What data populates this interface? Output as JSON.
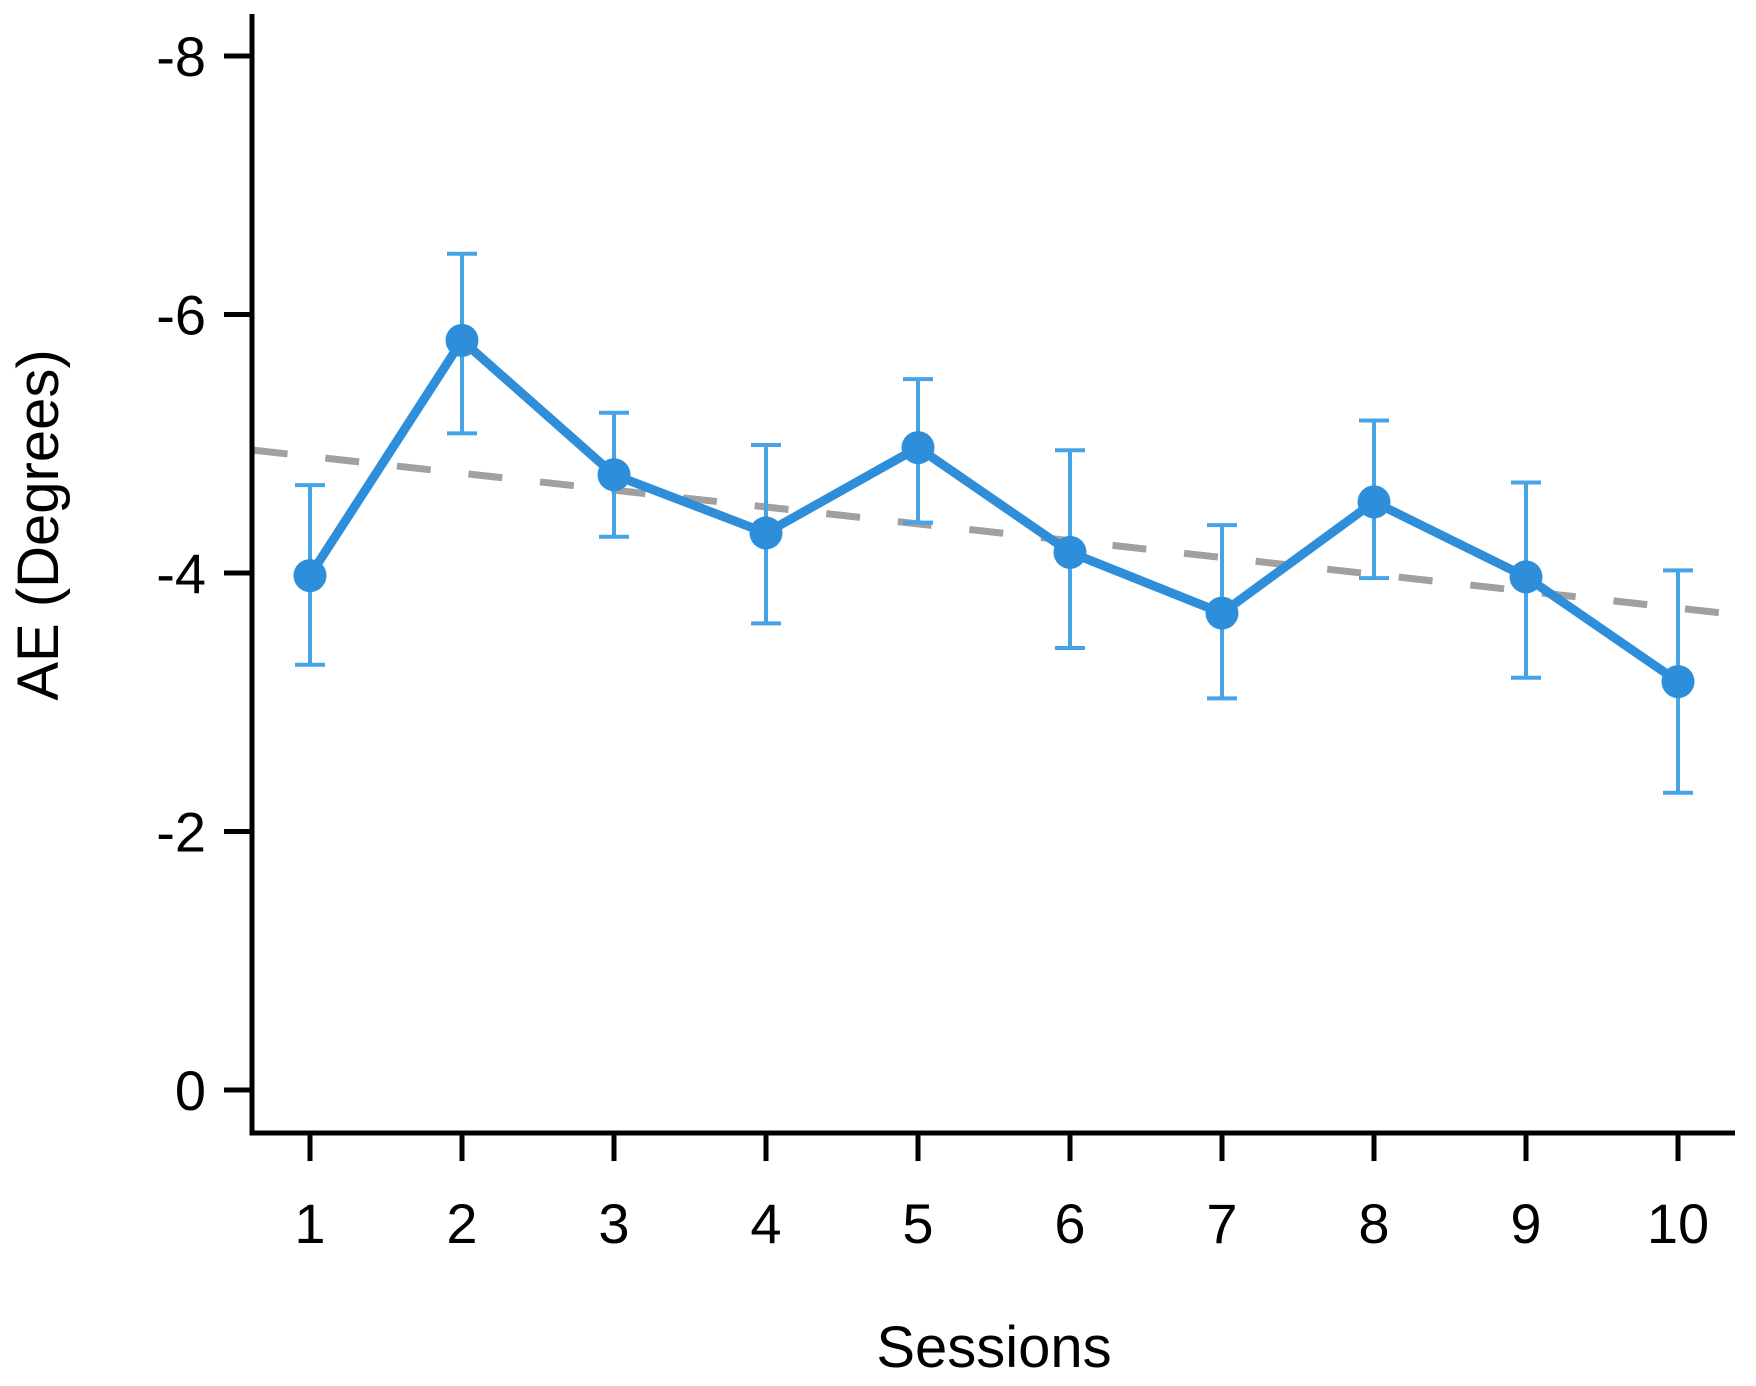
{
  "page": {
    "background": "#ffffff"
  },
  "chart_data": {
    "type": "line",
    "title": "",
    "xlabel": "Sessions",
    "ylabel": "AE (Degrees)",
    "grid": false,
    "legend": "none",
    "x_axis": {
      "label": "Sessions",
      "ticks": [
        1,
        2,
        3,
        4,
        5,
        6,
        7,
        8,
        9,
        10
      ],
      "tick_labels": [
        "1",
        "2",
        "3",
        "4",
        "5",
        "6",
        "7",
        "8",
        "9",
        "10"
      ]
    },
    "y_axis": {
      "label": "AE (Degrees)",
      "ticks": [
        -8,
        -6,
        -4,
        -2,
        0
      ],
      "tick_labels": [
        "-8",
        "-6",
        "-4",
        "-2",
        "0"
      ],
      "orientation": "negative values upward, 0 at bottom"
    },
    "categories": [
      1,
      2,
      3,
      4,
      5,
      6,
      7,
      8,
      9,
      10
    ],
    "series": [
      {
        "name": "AE (Degrees)",
        "values": [
          -3.98,
          -5.8,
          -4.76,
          -4.31,
          -4.97,
          -4.16,
          -3.69,
          -4.55,
          -3.97,
          -3.16
        ],
        "error_caps_upper": [
          -4.68,
          -6.47,
          -5.24,
          -4.99,
          -5.5,
          -4.95,
          -4.37,
          -5.18,
          -4.7,
          -4.02
        ],
        "error_caps_lower": [
          -3.29,
          -5.08,
          -4.28,
          -3.61,
          -4.39,
          -3.42,
          -3.03,
          -3.96,
          -3.19,
          -2.3
        ]
      }
    ],
    "trend_line": {
      "style": "dashed",
      "x_start": 0.63,
      "y_start": -4.95,
      "x_end": 10.45,
      "y_end": -3.67
    },
    "colors": {
      "line": "#2E8ED9",
      "marker": "#2E8ED9",
      "error_bar": "#47A3E8",
      "trend": "#A0A0A0",
      "axis": "#000000",
      "text": "#000000"
    }
  }
}
